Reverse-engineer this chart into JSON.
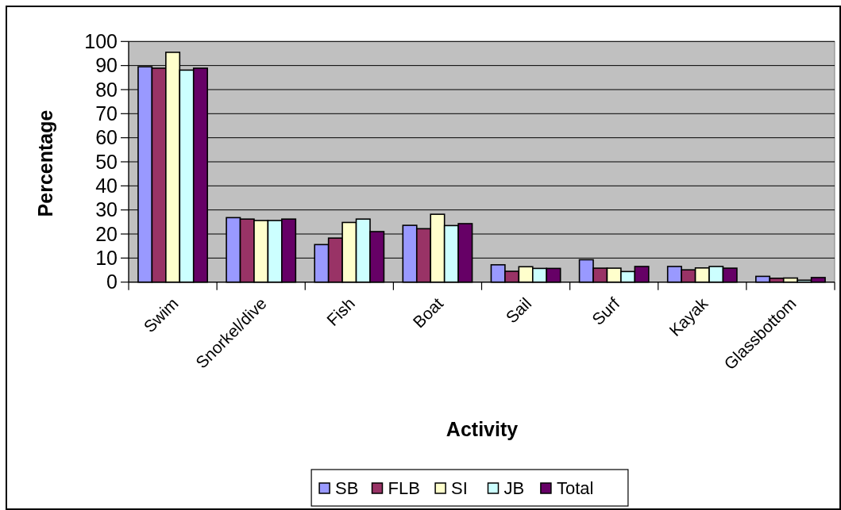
{
  "chart_data": {
    "type": "bar",
    "xlabel": "Activity",
    "ylabel": "Percentage",
    "categories": [
      "Swim",
      "Snorkel/dive",
      "Fish",
      "Boat",
      "Sail",
      "Surf",
      "Kayak",
      "Glassbottom"
    ],
    "series": [
      {
        "name": "SB",
        "color": "#9999ff",
        "values": [
          89.5,
          26.8,
          15.6,
          23.6,
          7.2,
          9.3,
          6.5,
          2.4
        ]
      },
      {
        "name": "FLB",
        "color": "#993366",
        "values": [
          88.9,
          26.2,
          18.3,
          22.2,
          4.5,
          5.8,
          5.1,
          1.6
        ]
      },
      {
        "name": "SI",
        "color": "#ffffcc",
        "values": [
          95.5,
          25.6,
          24.8,
          28.2,
          6.4,
          5.8,
          5.9,
          1.7
        ]
      },
      {
        "name": "JB",
        "color": "#ccffff",
        "values": [
          88.1,
          25.6,
          26.2,
          23.5,
          5.7,
          4.4,
          6.5,
          0.8
        ]
      },
      {
        "name": "Total",
        "color": "#660066",
        "values": [
          88.9,
          26.2,
          21.0,
          24.3,
          5.7,
          6.5,
          5.8,
          1.9
        ]
      }
    ],
    "ylim": [
      0,
      100
    ],
    "yticks": [
      0,
      10,
      20,
      30,
      40,
      50,
      60,
      70,
      80,
      90,
      100
    ],
    "grid": "y",
    "legend": "bottom"
  }
}
